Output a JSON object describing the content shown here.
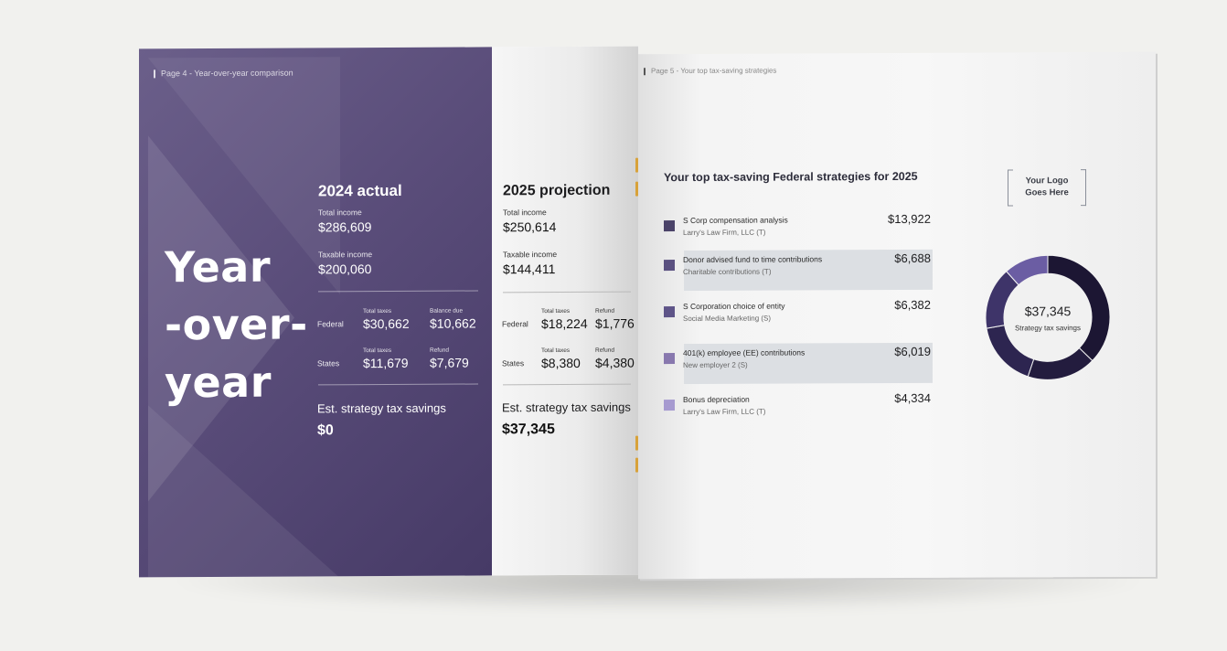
{
  "left_page": {
    "tag": "Page 4 - Year-over-year comparison",
    "title_lines": [
      "Year",
      "-over-",
      "year"
    ],
    "actual": {
      "heading": "2024 actual",
      "total_income_label": "Total income",
      "total_income": "$286,609",
      "taxable_income_label": "Taxable income",
      "taxable_income": "$200,060",
      "federal_label": "Federal",
      "federal_taxes_label": "Total taxes",
      "federal_taxes": "$30,662",
      "federal_due_label": "Balance due",
      "federal_due": "$10,662",
      "states_label": "States",
      "states_taxes_label": "Total taxes",
      "states_taxes": "$11,679",
      "states_refund_label": "Refund",
      "states_refund": "$7,679",
      "savings_label": "Est. strategy tax savings",
      "savings": "$0"
    },
    "projection": {
      "heading": "2025 projection",
      "total_income_label": "Total income",
      "total_income": "$250,614",
      "taxable_income_label": "Taxable income",
      "taxable_income": "$144,411",
      "federal_label": "Federal",
      "federal_taxes_label": "Total taxes",
      "federal_taxes": "$18,224",
      "federal_refund_label": "Refund",
      "federal_refund": "$1,776",
      "states_label": "States",
      "states_taxes_label": "Total taxes",
      "states_taxes": "$8,380",
      "states_refund_label": "Refund",
      "states_refund": "$4,380",
      "savings_label": "Est. strategy tax savings",
      "savings": "$37,345"
    }
  },
  "right_page": {
    "tag": "Page 5 - Your top tax-saving strategies",
    "title": "Your top tax-saving Federal strategies for 2025",
    "logo_line1": "Your Logo",
    "logo_line2": "Goes Here",
    "strategies": [
      {
        "name": "S Corp compensation analysis",
        "sub": "Larry's Law Firm, LLC (T)",
        "amount": "$13,922",
        "color": "#4a4268"
      },
      {
        "name": "Donor advised fund to time contributions",
        "sub": "Charitable contributions (T)",
        "amount": "$6,688",
        "color": "#5a5080"
      },
      {
        "name": "S Corporation choice of entity",
        "sub": "Social Media Marketing (S)",
        "amount": "$6,382",
        "color": "#5e5488"
      },
      {
        "name": "401(k) employee (EE) contributions",
        "sub": "New employer 2 (S)",
        "amount": "$6,019",
        "color": "#8878ae"
      },
      {
        "name": "Bonus depreciation",
        "sub": "Larry's Law Firm, LLC (T)",
        "amount": "$4,334",
        "color": "#a69ad0"
      }
    ],
    "donut_total": "$37,345",
    "donut_label": "Strategy tax savings"
  },
  "chart_data": {
    "type": "pie",
    "title": "",
    "categories": [
      "S Corp compensation analysis",
      "Donor advised fund to time contributions",
      "S Corporation choice of entity",
      "401(k) employee (EE) contributions",
      "Bonus depreciation"
    ],
    "values": [
      13922,
      6688,
      6382,
      6019,
      4334
    ],
    "colors": [
      "#1c1633",
      "#231c3e",
      "#2d2550",
      "#3e3469",
      "#6b5da3"
    ],
    "donut": true
  }
}
